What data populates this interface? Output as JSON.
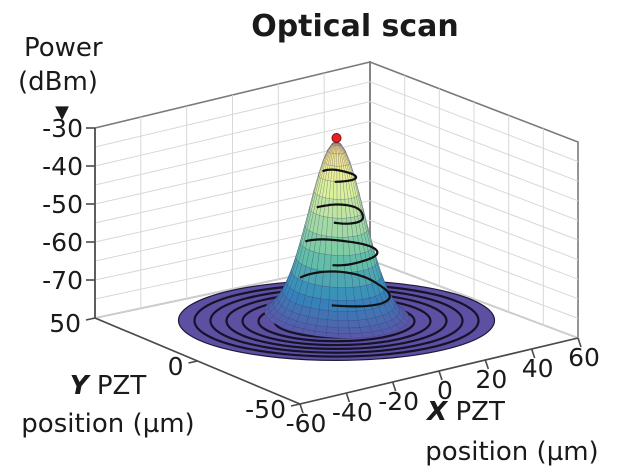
{
  "chart_data": {
    "type": "surface",
    "title": "Optical scan",
    "zlabel": {
      "line1": "Power",
      "line2": "(dBm)",
      "marker": "▼"
    },
    "ylabel": {
      "bold": "Y",
      "rest": " PZT",
      "line2": "position (µm)"
    },
    "xlabel": {
      "bold": "X",
      "rest": " PZT",
      "line2": "position (µm)"
    },
    "z_ticks": [
      "-30",
      "-40",
      "-50",
      "-60",
      "-70"
    ],
    "y_ticks": [
      "50",
      "0",
      "-50"
    ],
    "x_ticks": [
      "-60",
      "-40",
      "-20",
      "0",
      "20",
      "40",
      "60"
    ],
    "xlim": [
      -60,
      60
    ],
    "ylim": [
      -50,
      50
    ],
    "zlim": [
      -80,
      -30
    ],
    "surface": {
      "peak": {
        "x": 0,
        "y": 0,
        "z": -31
      },
      "floor_z": -78,
      "floor_radius": 55,
      "beam_sigma": 9,
      "colormap": [
        "#5e4fa2",
        "#3288bd",
        "#66c2a5",
        "#abdda4",
        "#e6f598",
        "#fee08b"
      ]
    },
    "contour_levels": [
      -40,
      -50,
      -60,
      -70
    ],
    "max_marker": {
      "x": 0,
      "y": 0,
      "z": -30,
      "color": "#e8202a"
    },
    "grid": true
  }
}
